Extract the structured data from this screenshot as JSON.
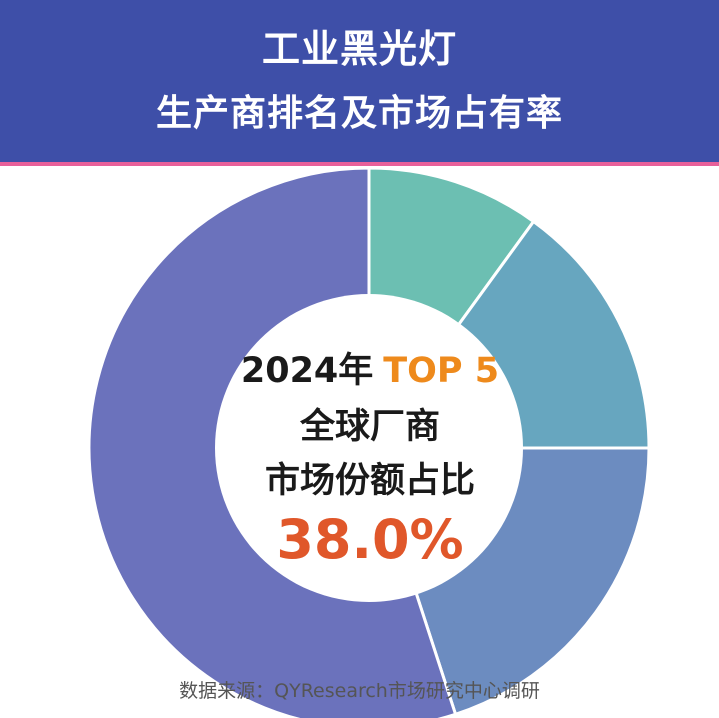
{
  "header": {
    "title_line1": "工业黑光灯",
    "title_line2": "生产商排名及市场占有率"
  },
  "center": {
    "line1_year": "2024年",
    "line1_top": "TOP 5",
    "line2": "全球厂商",
    "line3": "市场份额占比",
    "value": "38.0%"
  },
  "source": "数据来源：QYResearch市场研究中心调研",
  "chart_data": {
    "type": "pie",
    "title": "",
    "categories": [
      "",
      "",
      "",
      ""
    ],
    "values": [
      10,
      15,
      20,
      55
    ],
    "colors": [
      "#6cbfb2",
      "#67a6bf",
      "#6c8cc0",
      "#6b72bc"
    ]
  }
}
